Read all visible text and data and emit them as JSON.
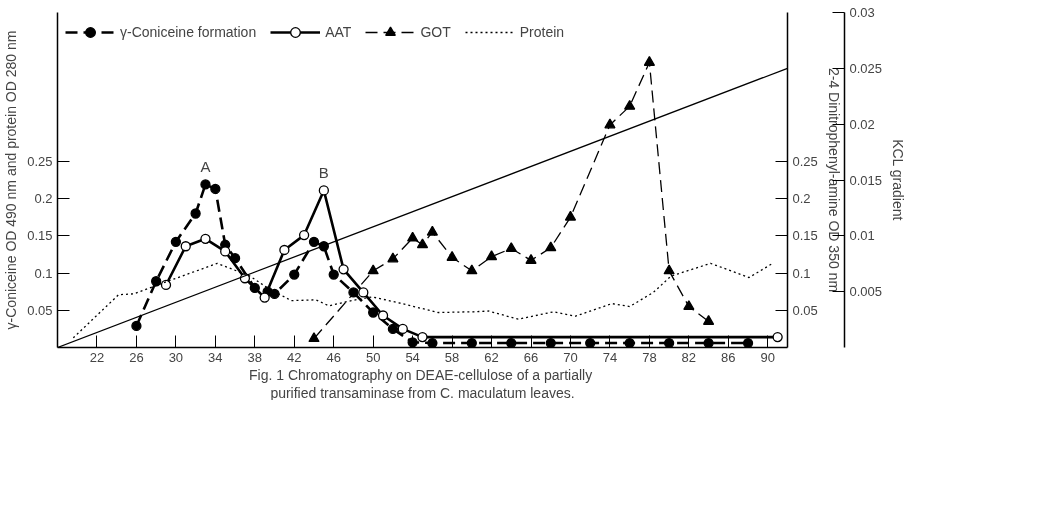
{
  "chart_data": {
    "type": "line",
    "ylabel": "γ-Coniceine OD 490 nm and protein OD 280 nm",
    "y2label": "2-4 Dinitrophenyl-amine OD 350 nm",
    "y3label": "KCL gradient",
    "xlim": [
      18,
      92
    ],
    "xticks": [
      22,
      26,
      30,
      34,
      38,
      42,
      46,
      50,
      54,
      58,
      62,
      66,
      70,
      74,
      78,
      82,
      86,
      90
    ],
    "ylim": [
      0,
      0.45
    ],
    "yticks": [
      0.05,
      0.1,
      0.15,
      0.2,
      0.25
    ],
    "y2lim": [
      0,
      0.45
    ],
    "y2ticks": [
      0.05,
      0.1,
      0.15,
      0.2,
      0.25
    ],
    "y3lim": [
      0,
      0.03
    ],
    "y3ticks": [
      0.005,
      0.01,
      0.015,
      0.02,
      0.025,
      0.03
    ],
    "grid": false,
    "legend": "top left",
    "series": [
      {
        "name": "γ-Coniceine formation",
        "color": "#000000",
        "marker": "circle",
        "line_style": "dashed",
        "x": [
          26,
          28,
          30,
          32,
          33,
          34,
          35,
          36,
          38,
          39.3,
          40,
          42,
          44,
          45,
          46,
          48,
          50,
          52,
          54,
          56,
          60,
          64,
          68,
          72,
          76,
          80,
          84,
          88
        ],
        "values": [
          0.029,
          0.089,
          0.142,
          0.18,
          0.219,
          0.213,
          0.138,
          0.12,
          0.08,
          0.075,
          0.072,
          0.098,
          0.142,
          0.136,
          0.098,
          0.074,
          0.047,
          0.025,
          0.007,
          0.006,
          0.006,
          0.006,
          0.006,
          0.006,
          0.006,
          0.006,
          0.006,
          0.006
        ]
      },
      {
        "name": "AAT",
        "color": "#000000",
        "marker": "circle_open",
        "line_style": "solid",
        "x": [
          29,
          31,
          33,
          35,
          37,
          39,
          41,
          43,
          45,
          47,
          49,
          51,
          53,
          55,
          91
        ],
        "values": [
          0.084,
          0.136,
          0.146,
          0.129,
          0.093,
          0.067,
          0.131,
          0.151,
          0.211,
          0.105,
          0.074,
          0.043,
          0.025,
          0.014,
          0.014
        ]
      },
      {
        "name": "GOT",
        "color": "#000000",
        "marker": "triangle",
        "line_style": "dashed",
        "axis": "y2",
        "x": [
          44,
          50,
          52,
          54,
          55,
          56,
          58,
          60,
          62,
          64,
          66,
          68,
          70,
          74,
          76,
          78,
          80,
          82,
          84
        ],
        "values": [
          0.012,
          0.103,
          0.119,
          0.147,
          0.138,
          0.155,
          0.121,
          0.103,
          0.122,
          0.133,
          0.117,
          0.134,
          0.175,
          0.299,
          0.324,
          0.383,
          0.103,
          0.055,
          0.035
        ]
      },
      {
        "name": "Protein",
        "color": "#000000",
        "marker": "none",
        "line_style": "dotted",
        "x": [
          19.6,
          24.2,
          25.7,
          29.6,
          34.2,
          37.5,
          39.3,
          41.7,
          44.2,
          45.5,
          47.8,
          49.9,
          52.6,
          56.6,
          60.2,
          61.7,
          64.7,
          68.3,
          70.5,
          74.2,
          76,
          78.4,
          80.2,
          84.2,
          88.1,
          90.5
        ],
        "values": [
          0.013,
          0.071,
          0.072,
          0.091,
          0.113,
          0.096,
          0.08,
          0.063,
          0.064,
          0.056,
          0.063,
          0.068,
          0.06,
          0.047,
          0.048,
          0.049,
          0.038,
          0.048,
          0.042,
          0.059,
          0.055,
          0.074,
          0.096,
          0.113,
          0.094,
          0.113
        ]
      },
      {
        "color": "#000000",
        "marker": "none",
        "line_style": "solid",
        "axis": "y3",
        "x": [
          18,
          92
        ],
        "values": [
          0,
          0.025
        ]
      }
    ],
    "annotations": [
      {
        "text": "A",
        "x": 33,
        "y": 0.219
      },
      {
        "text": "B",
        "x": 45,
        "y": 0.211
      },
      "Fig. 1  Chromatography on DEAE-cellulose of a partially",
      "purified transaminase from C. maculatum leaves."
    ]
  }
}
